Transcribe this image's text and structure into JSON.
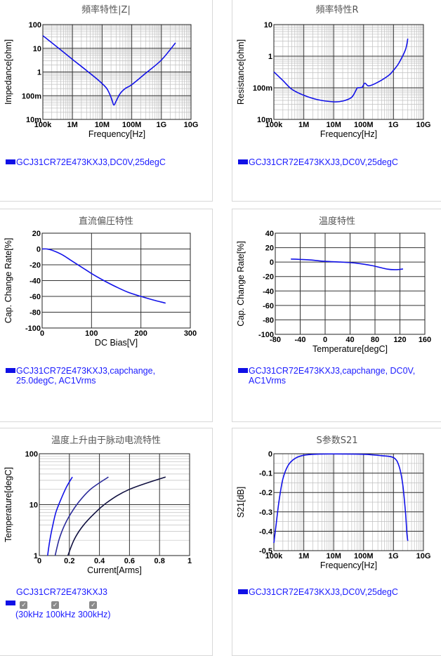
{
  "colors": {
    "curve": "#1212e8",
    "curve_dark_1": "#2a2a9a",
    "curve_dark_2": "#101040",
    "grid_major": "#333333",
    "grid_minor": "#c0c0c0",
    "legend_text": "#1a1aff"
  },
  "panels": [
    {
      "title": "頻率特性|Z|",
      "legend": "GCJ31CR72E473KXJ3,DC0V,25degC",
      "chart_data": {
        "type": "line",
        "xscale": "log",
        "yscale": "log",
        "xlabel": "Frequency[Hz]",
        "ylabel": "Impedance[ohm]",
        "xlim": [
          100000,
          10000000000
        ],
        "ylim": [
          0.01,
          100
        ],
        "xticks": [
          "100k",
          "1M",
          "10M",
          "100M",
          "1G",
          "10G"
        ],
        "yticks": [
          "10m",
          "100m",
          "1",
          "10",
          "100"
        ],
        "series": [
          {
            "x": [
              100000,
              300000,
              1000000,
              3000000,
              8000000,
              14000000,
              19000000,
              22000000,
              25000000,
              30000000,
              40000000,
              60000000,
              100000000,
              300000000,
              1000000000,
              3000000000
            ],
            "y": [
              34,
              11.5,
              3.4,
              1.15,
              0.42,
              0.21,
              0.1,
              0.06,
              0.04,
              0.06,
              0.12,
              0.2,
              0.29,
              0.9,
              3.2,
              17
            ]
          }
        ]
      }
    },
    {
      "title": "頻率特性R",
      "legend": "GCJ31CR72E473KXJ3,DC0V,25degC",
      "chart_data": {
        "type": "line",
        "xscale": "log",
        "yscale": "log",
        "xlabel": "Frequency[Hz]",
        "ylabel": "Resistance[ohm]",
        "xlim": [
          100000,
          10000000000
        ],
        "ylim": [
          0.01,
          10
        ],
        "xticks": [
          "100k",
          "1M",
          "10M",
          "100M",
          "1G",
          "10G"
        ],
        "yticks": [
          "10m",
          "100m",
          "1",
          "10"
        ],
        "series": [
          {
            "x": [
              100000,
              200000,
              400000,
              1000000,
              3000000,
              10000000,
              20000000,
              40000000,
              60000000,
              70000000,
              90000000,
              110000000,
              150000000,
              300000000,
              700000000,
              1000000000,
              1500000000,
              2500000000,
              3000000000
            ],
            "y": [
              0.32,
              0.17,
              0.09,
              0.058,
              0.042,
              0.036,
              0.038,
              0.05,
              0.095,
              0.1,
              0.105,
              0.14,
              0.115,
              0.15,
              0.25,
              0.36,
              0.6,
              1.6,
              3.6
            ]
          }
        ]
      }
    },
    {
      "title": "直流偏圧特性",
      "legend_lines": [
        "GCJ31CR72E473KXJ3,capchange,",
        "25.0degC, AC1Vrms"
      ],
      "chart_data": {
        "type": "line",
        "xscale": "linear",
        "yscale": "linear",
        "xlabel": "DC Bias[V]",
        "ylabel": "Cap. Change Rate[%]",
        "xlim": [
          0,
          300
        ],
        "ylim": [
          -100,
          20
        ],
        "xticks": [
          "0",
          "100",
          "200",
          "300"
        ],
        "yticks": [
          "-100",
          "-80",
          "-60",
          "-40",
          "-20",
          "0",
          "20"
        ],
        "series": [
          {
            "x": [
              0,
              10,
              20,
              40,
              60,
              80,
              100,
              125,
              150,
              175,
              200,
              225,
              250
            ],
            "y": [
              0,
              0,
              -1.5,
              -7,
              -15,
              -23,
              -31,
              -40,
              -48,
              -55,
              -60,
              -64.5,
              -68.5
            ]
          }
        ]
      }
    },
    {
      "title": "温度特性",
      "legend_lines": [
        "GCJ31CR72E473KXJ3,capchange, DC0V,",
        "AC1Vrms"
      ],
      "chart_data": {
        "type": "line",
        "xscale": "linear",
        "yscale": "linear",
        "xlabel": "Temperature[degC]",
        "ylabel": "Cap. Change Rate[%]",
        "xlim": [
          -80,
          160
        ],
        "ylim": [
          -100,
          40
        ],
        "xticks": [
          "-80",
          "-40",
          "0",
          "40",
          "80",
          "120",
          "160"
        ],
        "yticks": [
          "-100",
          "-80",
          "-60",
          "-40",
          "-20",
          "0",
          "20",
          "40"
        ],
        "series": [
          {
            "x": [
              -55,
              -25,
              0,
              25,
              50,
              75,
              100,
              115,
              125
            ],
            "y": [
              4.2,
              3,
              1,
              0,
              -1.5,
              -4.8,
              -9.8,
              -10.5,
              -9.5
            ]
          }
        ]
      }
    },
    {
      "title": "温度上升由于脉动电流特性",
      "legend": "GCJ31CR72E473KXJ3",
      "freq_labels": [
        "30kHz",
        "100kHz",
        "300kHz)"
      ],
      "open_paren": "(",
      "chart_data": {
        "type": "line",
        "xscale": "linear",
        "yscale": "log",
        "xlabel": "Current[Arms]",
        "ylabel": "Temperature[degC]",
        "xlim": [
          0,
          1
        ],
        "ylim": [
          1,
          100
        ],
        "xticks": [
          "0",
          "0.2",
          "0.4",
          "0.6",
          "0.8",
          "1"
        ],
        "yticks": [
          "1",
          "10",
          "100"
        ],
        "series": [
          {
            "name": "30kHz",
            "x": [
              0.055,
              0.07,
              0.09,
              0.11,
              0.14,
              0.18,
              0.22
            ],
            "y": [
              1,
              2,
              4,
              7,
              12,
              22,
              35
            ]
          },
          {
            "name": "100kHz",
            "x": [
              0.105,
              0.13,
              0.16,
              0.2,
              0.26,
              0.34,
              0.46
            ],
            "y": [
              1,
              2,
              3.5,
              6,
              11,
              20,
              35
            ]
          },
          {
            "name": "300kHz",
            "x": [
              0.19,
              0.23,
              0.28,
              0.35,
              0.45,
              0.6,
              0.84
            ],
            "y": [
              1,
              2,
              3.5,
              6,
              11,
              20,
              35
            ]
          }
        ]
      }
    },
    {
      "title": "S参数S21",
      "legend": "GCJ31CR72E473KXJ3,DC0V,25degC",
      "chart_data": {
        "type": "line",
        "xscale": "log",
        "yscale": "linear",
        "xlabel": "Frequency[Hz]",
        "ylabel": "S21[dB]",
        "xlim": [
          100000,
          10000000000
        ],
        "ylim": [
          -0.5,
          0
        ],
        "xticks": [
          "100k",
          "1M",
          "10M",
          "100M",
          "1G",
          "10G"
        ],
        "yticks": [
          "-0.5",
          "-0.4",
          "-0.3",
          "-0.2",
          "-0.1",
          "0"
        ],
        "series": [
          {
            "x": [
              100000,
              120000,
              150000,
              200000,
              300000,
              500000,
              1000000,
              3000000,
              10000000,
              100000000,
              400000000,
              1000000000,
              1500000000,
              2000000000,
              2500000000,
              2800000000,
              3000000000
            ],
            "y": [
              -0.46,
              -0.36,
              -0.24,
              -0.13,
              -0.06,
              -0.025,
              -0.008,
              -0.002,
              -0.001,
              -0.003,
              -0.01,
              -0.02,
              -0.06,
              -0.15,
              -0.3,
              -0.41,
              -0.45
            ]
          }
        ]
      }
    }
  ]
}
